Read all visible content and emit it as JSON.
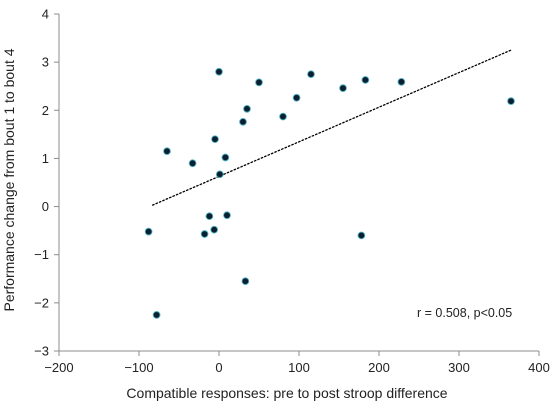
{
  "chart_data": {
    "type": "scatter",
    "title": "",
    "xlabel": "Compatible responses: pre to post stroop difference",
    "ylabel": "Performance change from bout 1 to bout 4",
    "xlim": [
      -200,
      400
    ],
    "ylim": [
      -3,
      4
    ],
    "xticks": [
      -200,
      -100,
      0,
      100,
      200,
      300,
      400
    ],
    "yticks": [
      -3,
      -2,
      -1,
      0,
      1,
      2,
      3,
      4
    ],
    "xtick_labels": [
      "−200",
      "−100",
      "0",
      "100",
      "200",
      "300",
      "400"
    ],
    "ytick_labels": [
      "−3",
      "−2",
      "−1",
      "0",
      "1",
      "2",
      "3",
      "4"
    ],
    "grid": false,
    "point_color": "#0b1f2e",
    "point_edge_color": "#4fb3c8",
    "trendline": {
      "style": "dotted",
      "color": "#000000",
      "x": [
        -83,
        365
      ],
      "y": [
        0.03,
        3.25
      ]
    },
    "annotation": "r = 0.508, p<0.05",
    "points": [
      {
        "x": -88,
        "y": -0.52
      },
      {
        "x": -78,
        "y": -2.25
      },
      {
        "x": -65,
        "y": 1.15
      },
      {
        "x": -33,
        "y": 0.9
      },
      {
        "x": -18,
        "y": -0.57
      },
      {
        "x": -12,
        "y": -0.2
      },
      {
        "x": -6,
        "y": -0.48
      },
      {
        "x": -5,
        "y": 1.4
      },
      {
        "x": 0,
        "y": 2.8
      },
      {
        "x": 1,
        "y": 0.67
      },
      {
        "x": 8,
        "y": 1.02
      },
      {
        "x": 10,
        "y": -0.18
      },
      {
        "x": 30,
        "y": 1.76
      },
      {
        "x": 33,
        "y": -1.55
      },
      {
        "x": 35,
        "y": 2.03
      },
      {
        "x": 50,
        "y": 2.58
      },
      {
        "x": 80,
        "y": 1.87
      },
      {
        "x": 97,
        "y": 2.26
      },
      {
        "x": 115,
        "y": 2.75
      },
      {
        "x": 155,
        "y": 2.46
      },
      {
        "x": 178,
        "y": -0.6
      },
      {
        "x": 183,
        "y": 2.63
      },
      {
        "x": 228,
        "y": 2.59
      },
      {
        "x": 365,
        "y": 2.19
      }
    ]
  }
}
